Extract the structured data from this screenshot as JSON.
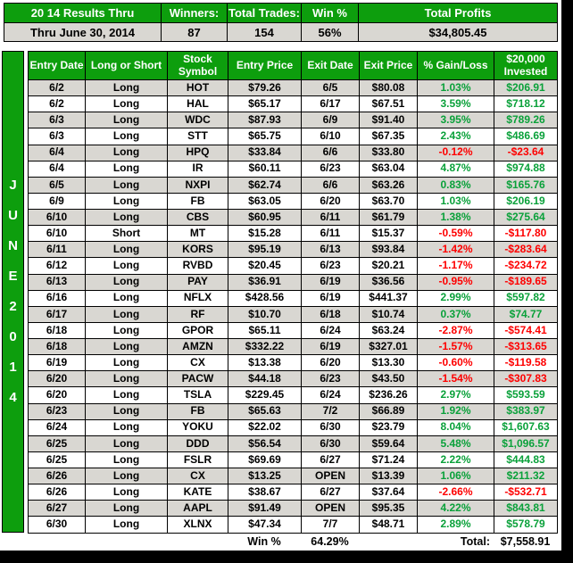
{
  "colors": {
    "green": "#0d9e0d",
    "row_shade": "#d9d7d2",
    "positive": "#0aa13a",
    "negative": "#fe0000"
  },
  "top_summary": {
    "title": "20 14 Results Thru",
    "subtitle": "Thru June 30, 2014",
    "winners_label": "Winners:",
    "winners_value": "87",
    "trades_label": "Total Trades:",
    "trades_value": "154",
    "win_pct_label": "Win %",
    "win_pct_value": "56%",
    "profits_label": "Total Profits",
    "profits_value": "$34,805.45"
  },
  "month_bar": {
    "letters": [
      "J",
      "U",
      "N",
      "E",
      "2",
      "0",
      "1",
      "4"
    ]
  },
  "table": {
    "headers": [
      "Entry Date",
      "Long or Short",
      "Stock Symbol",
      "Entry Price",
      "Exit Date",
      "Exit Price",
      "% Gain/Loss",
      "$20,000 Invested"
    ],
    "rows": [
      [
        "6/2",
        "Long",
        "HOT",
        "$79.26",
        "6/5",
        "$80.08",
        "1.03%",
        "$206.91"
      ],
      [
        "6/2",
        "Long",
        "HAL",
        "$65.17",
        "6/17",
        "$67.51",
        "3.59%",
        "$718.12"
      ],
      [
        "6/3",
        "Long",
        "WDC",
        "$87.93",
        "6/9",
        "$91.40",
        "3.95%",
        "$789.26"
      ],
      [
        "6/3",
        "Long",
        "STT",
        "$65.75",
        "6/10",
        "$67.35",
        "2.43%",
        "$486.69"
      ],
      [
        "6/4",
        "Long",
        "HPQ",
        "$33.84",
        "6/6",
        "$33.80",
        "-0.12%",
        "-$23.64"
      ],
      [
        "6/4",
        "Long",
        "IR",
        "$60.11",
        "6/23",
        "$63.04",
        "4.87%",
        "$974.88"
      ],
      [
        "6/5",
        "Long",
        "NXPI",
        "$62.74",
        "6/6",
        "$63.26",
        "0.83%",
        "$165.76"
      ],
      [
        "6/9",
        "Long",
        "FB",
        "$63.05",
        "6/20",
        "$63.70",
        "1.03%",
        "$206.19"
      ],
      [
        "6/10",
        "Long",
        "CBS",
        "$60.95",
        "6/11",
        "$61.79",
        "1.38%",
        "$275.64"
      ],
      [
        "6/10",
        "Short",
        "MT",
        "$15.28",
        "6/11",
        "$15.37",
        "-0.59%",
        "-$117.80"
      ],
      [
        "6/11",
        "Long",
        "KORS",
        "$95.19",
        "6/13",
        "$93.84",
        "-1.42%",
        "-$283.64"
      ],
      [
        "6/12",
        "Long",
        "RVBD",
        "$20.45",
        "6/23",
        "$20.21",
        "-1.17%",
        "-$234.72"
      ],
      [
        "6/13",
        "Long",
        "PAY",
        "$36.91",
        "6/19",
        "$36.56",
        "-0.95%",
        "-$189.65"
      ],
      [
        "6/16",
        "Long",
        "NFLX",
        "$428.56",
        "6/19",
        "$441.37",
        "2.99%",
        "$597.82"
      ],
      [
        "6/17",
        "Long",
        "RF",
        "$10.70",
        "6/18",
        "$10.74",
        "0.37%",
        "$74.77"
      ],
      [
        "6/18",
        "Long",
        "GPOR",
        "$65.11",
        "6/24",
        "$63.24",
        "-2.87%",
        "-$574.41"
      ],
      [
        "6/18",
        "Long",
        "AMZN",
        "$332.22",
        "6/19",
        "$327.01",
        "-1.57%",
        "-$313.65"
      ],
      [
        "6/19",
        "Long",
        "CX",
        "$13.38",
        "6/20",
        "$13.30",
        "-0.60%",
        "-$119.58"
      ],
      [
        "6/20",
        "Long",
        "PACW",
        "$44.18",
        "6/23",
        "$43.50",
        "-1.54%",
        "-$307.83"
      ],
      [
        "6/20",
        "Long",
        "TSLA",
        "$229.45",
        "6/24",
        "$236.26",
        "2.97%",
        "$593.59"
      ],
      [
        "6/23",
        "Long",
        "FB",
        "$65.63",
        "7/2",
        "$66.89",
        "1.92%",
        "$383.97"
      ],
      [
        "6/24",
        "Long",
        "YOKU",
        "$22.02",
        "6/30",
        "$23.79",
        "8.04%",
        "$1,607.63"
      ],
      [
        "6/25",
        "Long",
        "DDD",
        "$56.54",
        "6/30",
        "$59.64",
        "5.48%",
        "$1,096.57"
      ],
      [
        "6/25",
        "Long",
        "FSLR",
        "$69.69",
        "6/27",
        "$71.24",
        "2.22%",
        "$444.83"
      ],
      [
        "6/26",
        "Long",
        "CX",
        "$13.25",
        "OPEN",
        "$13.39",
        "1.06%",
        "$211.32"
      ],
      [
        "6/26",
        "Long",
        "KATE",
        "$38.67",
        "6/27",
        "$37.64",
        "-2.66%",
        "-$532.71"
      ],
      [
        "6/27",
        "Long",
        "AAPL",
        "$91.49",
        "OPEN",
        "$95.35",
        "4.22%",
        "$843.81"
      ],
      [
        "6/30",
        "Long",
        "XLNX",
        "$47.34",
        "7/7",
        "$48.71",
        "2.89%",
        "$578.79"
      ]
    ]
  },
  "footer": {
    "win_label": "Win %",
    "win_value": "64.29%",
    "total_label": "Total:",
    "total_value": "$7,558.91"
  }
}
